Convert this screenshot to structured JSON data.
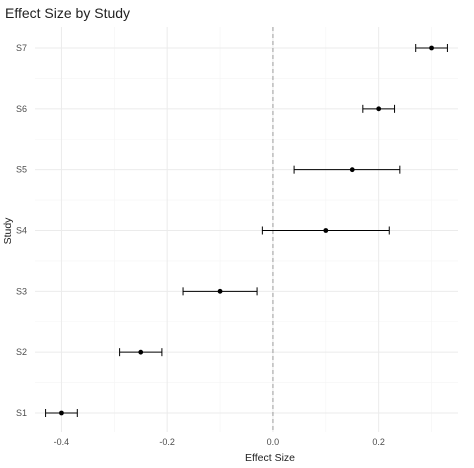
{
  "chart_data": {
    "type": "scatter",
    "subtype": "forest-plot",
    "title": "Effect Size by Study",
    "xlabel": "Effect Size",
    "ylabel": "Study",
    "xlim": [
      -0.45,
      0.35
    ],
    "x_ticks": [
      -0.4,
      -0.2,
      0.0,
      0.2
    ],
    "x_tick_labels": [
      "-0.4",
      "-0.2",
      "0.0",
      "0.2"
    ],
    "reference_line": {
      "x": 0,
      "style": "dashed",
      "color": "#9a9a9a"
    },
    "grid": true,
    "legend": "none",
    "point_color": "#000000",
    "grid_major_color": "#ebebeb",
    "grid_minor_color": "#f4f4f4",
    "studies": [
      {
        "label": "S1",
        "effect": -0.4,
        "lower": -0.43,
        "upper": -0.37
      },
      {
        "label": "S2",
        "effect": -0.25,
        "lower": -0.29,
        "upper": -0.21
      },
      {
        "label": "S3",
        "effect": -0.1,
        "lower": -0.17,
        "upper": -0.03
      },
      {
        "label": "S4",
        "effect": 0.1,
        "lower": -0.02,
        "upper": 0.22
      },
      {
        "label": "S5",
        "effect": 0.15,
        "lower": 0.04,
        "upper": 0.24
      },
      {
        "label": "S6",
        "effect": 0.2,
        "lower": 0.17,
        "upper": 0.23
      },
      {
        "label": "S7",
        "effect": 0.3,
        "lower": 0.27,
        "upper": 0.33
      }
    ]
  }
}
